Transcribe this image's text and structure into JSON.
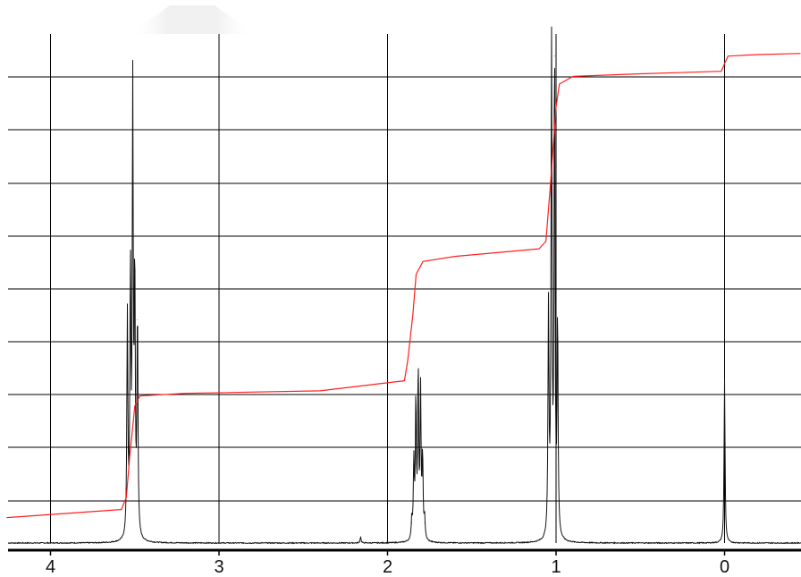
{
  "chart_data": {
    "type": "line",
    "title": "",
    "xlabel": "",
    "ylabel": "",
    "x_direction": "descending",
    "xlim": [
      4.26,
      -0.45
    ],
    "ylim": [
      0,
      1
    ],
    "grid": true,
    "x_ticks": [
      "4",
      "3",
      "2",
      "1",
      "0"
    ],
    "colors": {
      "spectrum": "#111111",
      "integral": "#ff1f1f",
      "grid": "#000000"
    },
    "series": [
      {
        "kind": "peaks",
        "values": [
          {
            "x": 3.544,
            "y": 0.44
          },
          {
            "x": 3.526,
            "y": 0.52
          },
          {
            "x": 3.512,
            "y": 0.87
          },
          {
            "x": 3.5,
            "y": 0.51
          },
          {
            "x": 3.484,
            "y": 0.44
          },
          {
            "x": 1.856,
            "y": 0.04
          },
          {
            "x": 1.844,
            "y": 0.15
          },
          {
            "x": 1.832,
            "y": 0.27
          },
          {
            "x": 1.818,
            "y": 0.33
          },
          {
            "x": 1.804,
            "y": 0.29
          },
          {
            "x": 1.792,
            "y": 0.16
          },
          {
            "x": 1.78,
            "y": 0.04
          },
          {
            "x": 1.045,
            "y": 0.45
          },
          {
            "x": 1.027,
            "y": 0.98
          },
          {
            "x": 1.009,
            "y": 0.96
          },
          {
            "x": 0.991,
            "y": 0.43
          },
          {
            "x": 2.16,
            "y": 0.012
          },
          {
            "x": 0.0,
            "y": 0.32
          }
        ]
      },
      {
        "kind": "integral",
        "values": [
          {
            "x": 4.26,
            "y": 0.05
          },
          {
            "x": 3.58,
            "y": 0.066
          },
          {
            "x": 3.55,
            "y": 0.09
          },
          {
            "x": 3.53,
            "y": 0.17
          },
          {
            "x": 3.5,
            "y": 0.27
          },
          {
            "x": 3.47,
            "y": 0.29
          },
          {
            "x": 3.2,
            "y": 0.295
          },
          {
            "x": 2.4,
            "y": 0.3
          },
          {
            "x": 1.9,
            "y": 0.32
          },
          {
            "x": 1.88,
            "y": 0.36
          },
          {
            "x": 1.85,
            "y": 0.45
          },
          {
            "x": 1.83,
            "y": 0.53
          },
          {
            "x": 1.79,
            "y": 0.555
          },
          {
            "x": 1.6,
            "y": 0.565
          },
          {
            "x": 1.1,
            "y": 0.58
          },
          {
            "x": 1.06,
            "y": 0.595
          },
          {
            "x": 1.03,
            "y": 0.72
          },
          {
            "x": 1.0,
            "y": 0.86
          },
          {
            "x": 0.98,
            "y": 0.905
          },
          {
            "x": 0.9,
            "y": 0.92
          },
          {
            "x": 0.5,
            "y": 0.925
          },
          {
            "x": 0.02,
            "y": 0.93
          },
          {
            "x": 0.0,
            "y": 0.945
          },
          {
            "x": -0.02,
            "y": 0.96
          },
          {
            "x": -0.2,
            "y": 0.963
          },
          {
            "x": -0.45,
            "y": 0.965
          }
        ]
      }
    ]
  }
}
